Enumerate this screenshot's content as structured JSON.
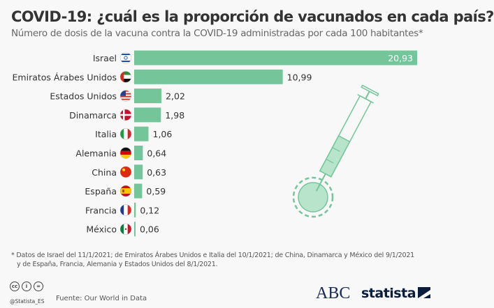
{
  "title": "COVID-19: ¿cuál es la proporción de vacunados en cada país?",
  "subtitle": "Número de dosis de la vacuna contra la COVID-19 administradas por cada 100 habitantes*",
  "footnote_line1": "* Datos de Israel del 11/1/2021; de Emiratos Árabes Unidos e Italia del 10/1/2021; de China, Dinamarca y México del 9/1/2021",
  "footnote_line2": "y de España, Francia, Alemania y Estados Unidos del 8/1/2021.",
  "handle": "@Statista_ES",
  "source": "Fuente: Our World in Data",
  "logos": {
    "abc": "ABC",
    "statista": "statista"
  },
  "license_icons": [
    "cc",
    "by",
    "nd"
  ],
  "colors": {
    "bar": "#74c69a",
    "illustration": "#74c69a",
    "illustration_fill": "#b9e4cc"
  },
  "chart_data": {
    "type": "bar",
    "orientation": "horizontal",
    "categories": [
      "Israel",
      "Emiratos Árabes Unidos",
      "Estados Unidos",
      "Dinamarca",
      "Italia",
      "Alemania",
      "China",
      "España",
      "Francia",
      "México"
    ],
    "labels": [
      "20,93",
      "10,99",
      "2,02",
      "1,98",
      "1,06",
      "0,64",
      "0,63",
      "0,59",
      "0,12",
      "0,06"
    ],
    "values": [
      20.93,
      10.99,
      2.02,
      1.98,
      1.06,
      0.64,
      0.63,
      0.59,
      0.12,
      0.06
    ],
    "flags": [
      "israel-flag",
      "uae-flag",
      "usa-flag",
      "denmark-flag",
      "italy-flag",
      "germany-flag",
      "china-flag",
      "spain-flag",
      "france-flag",
      "mexico-flag"
    ],
    "xlim": [
      0,
      20.93
    ],
    "grid": false,
    "legend": "none"
  }
}
